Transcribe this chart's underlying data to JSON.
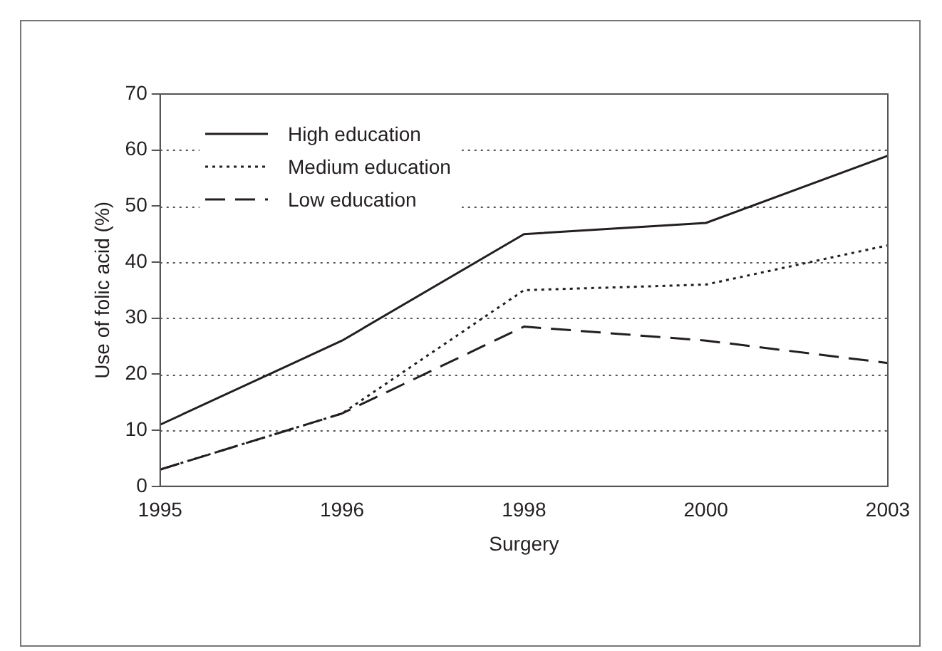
{
  "chart_data": {
    "type": "line",
    "xlabel": "Surgery",
    "ylabel": "Use of folic acid (%)",
    "categories": [
      "1995",
      "1996",
      "1998",
      "2000",
      "2003"
    ],
    "series": [
      {
        "name": "High education",
        "color": "#231f20",
        "line_style": "solid",
        "values": [
          11,
          26,
          45,
          47,
          59
        ]
      },
      {
        "name": "Medium education",
        "color": "#231f20",
        "line_style": "dotted",
        "values": [
          3,
          13,
          35,
          36,
          43
        ]
      },
      {
        "name": "Low education",
        "color": "#231f20",
        "line_style": "dashed",
        "values": [
          3,
          13,
          28.5,
          26,
          22
        ]
      }
    ],
    "ylim": [
      0,
      70
    ],
    "yticks": [
      0,
      10,
      20,
      30,
      40,
      50,
      60,
      70
    ],
    "grid": "y",
    "legend": "top left",
    "marker": "none"
  }
}
